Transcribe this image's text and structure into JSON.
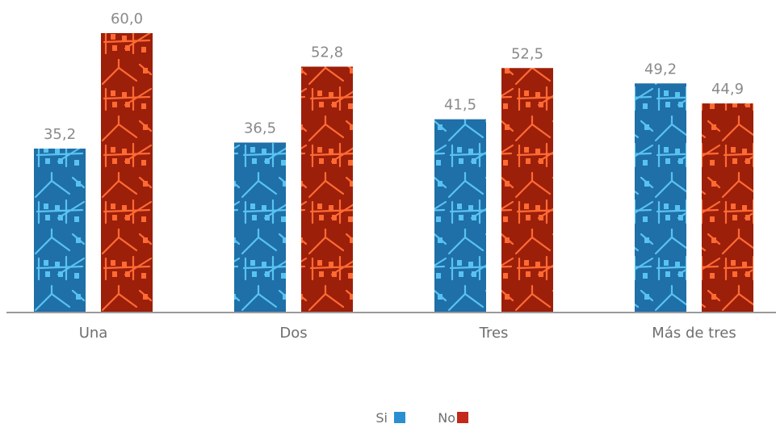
{
  "chart_data": {
    "type": "bar",
    "categories": [
      "Una",
      "Dos",
      "Tres",
      "Más de tres"
    ],
    "series": [
      {
        "name": "Si",
        "values": [
          35.2,
          36.5,
          41.5,
          49.2
        ],
        "value_labels": [
          "35,2",
          "36,5",
          "41,5",
          "49,2"
        ],
        "color": "#1f6fa8",
        "pattern_color": "#59c3f0"
      },
      {
        "name": "No",
        "values": [
          60.0,
          52.8,
          52.5,
          44.9
        ],
        "value_labels": [
          "60,0",
          "52,8",
          "52,5",
          "44,9"
        ],
        "color": "#9c1f0a",
        "pattern_color": "#ff6a33"
      }
    ],
    "title": "",
    "xlabel": "",
    "ylabel": "",
    "ylim": [
      0,
      60
    ],
    "grid": false,
    "legend_position": "bottom-center",
    "legend_swatch_colors": [
      "#2a8fd1",
      "#c3281b"
    ]
  }
}
